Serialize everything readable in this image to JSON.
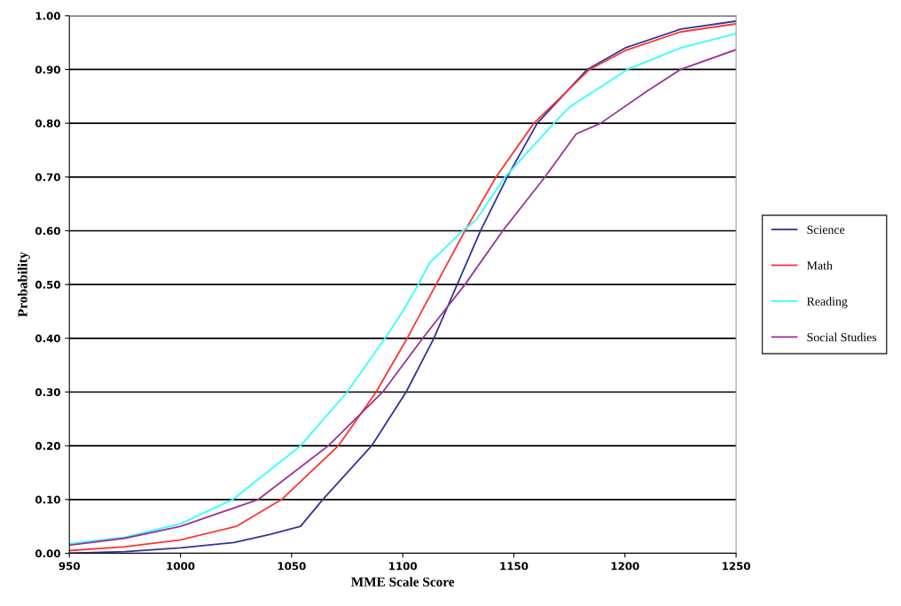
{
  "chart_data": {
    "type": "line",
    "xlabel": "MME Scale Score",
    "ylabel": "Probability",
    "xlim": [
      950,
      1250
    ],
    "xticks": [
      950,
      1000,
      1050,
      1100,
      1150,
      1200,
      1250
    ],
    "ylim": [
      0,
      1
    ],
    "yticks": [
      {
        "value": 0,
        "label": "0.00"
      },
      {
        "value": 0.1,
        "label": "0.10"
      },
      {
        "value": 0.2,
        "label": "0.20"
      },
      {
        "value": 0.3,
        "label": "0.30"
      },
      {
        "value": 0.4,
        "label": "0.40"
      },
      {
        "value": 0.5,
        "label": "0.50"
      },
      {
        "value": 0.6,
        "label": "0.60"
      },
      {
        "value": 0.7,
        "label": "0.70"
      },
      {
        "value": 0.8,
        "label": "0.80"
      },
      {
        "value": 0.9,
        "label": "0.90"
      },
      {
        "value": 1,
        "label": "1.00"
      }
    ],
    "grid": "y",
    "legend": "right",
    "marker": "none",
    "line_style": "solid",
    "series": [
      {
        "name": "Science",
        "color": "#333399",
        "x": [
          950,
          975,
          1000,
          1024,
          1040,
          1054,
          1064,
          1086,
          1101.5,
          1114,
          1124.5,
          1135,
          1147,
          1160.5,
          1183,
          1200,
          1225,
          1250
        ],
        "values": [
          0.0,
          0.003,
          0.01,
          0.02,
          0.035,
          0.05,
          0.1,
          0.2,
          0.3,
          0.4,
          0.5,
          0.6,
          0.7,
          0.8,
          0.9,
          0.94,
          0.975,
          0.99
        ]
      },
      {
        "name": "Math",
        "color": "#ff3333",
        "x": [
          950,
          975,
          1000,
          1025,
          1045.5,
          1071,
          1088,
          1102,
          1115,
          1128,
          1142,
          1159,
          1184,
          1200,
          1225,
          1250
        ],
        "values": [
          0.005,
          0.012,
          0.025,
          0.05,
          0.1,
          0.2,
          0.3,
          0.4,
          0.5,
          0.6,
          0.7,
          0.8,
          0.9,
          0.935,
          0.97,
          0.985
        ]
      },
      {
        "name": "Reading",
        "color": "#33ffff",
        "x": [
          950,
          975,
          1000,
          1023.5,
          1054,
          1075,
          1092,
          1100,
          1107,
          1112,
          1127,
          1133,
          1146,
          1168,
          1175,
          1201,
          1225,
          1250
        ],
        "values": [
          0.018,
          0.03,
          0.055,
          0.1,
          0.2,
          0.3,
          0.4,
          0.45,
          0.5,
          0.54,
          0.6,
          0.62,
          0.7,
          0.8,
          0.83,
          0.9,
          0.94,
          0.967
        ]
      },
      {
        "name": "Social Studies",
        "color": "#993399",
        "x": [
          950,
          975,
          1000,
          1035,
          1066.5,
          1091,
          1109,
          1128,
          1145,
          1164,
          1178,
          1189,
          1210,
          1225,
          1250
        ],
        "values": [
          0.015,
          0.028,
          0.05,
          0.1,
          0.2,
          0.3,
          0.4,
          0.5,
          0.6,
          0.7,
          0.78,
          0.8,
          0.86,
          0.9,
          0.937
        ]
      }
    ]
  }
}
